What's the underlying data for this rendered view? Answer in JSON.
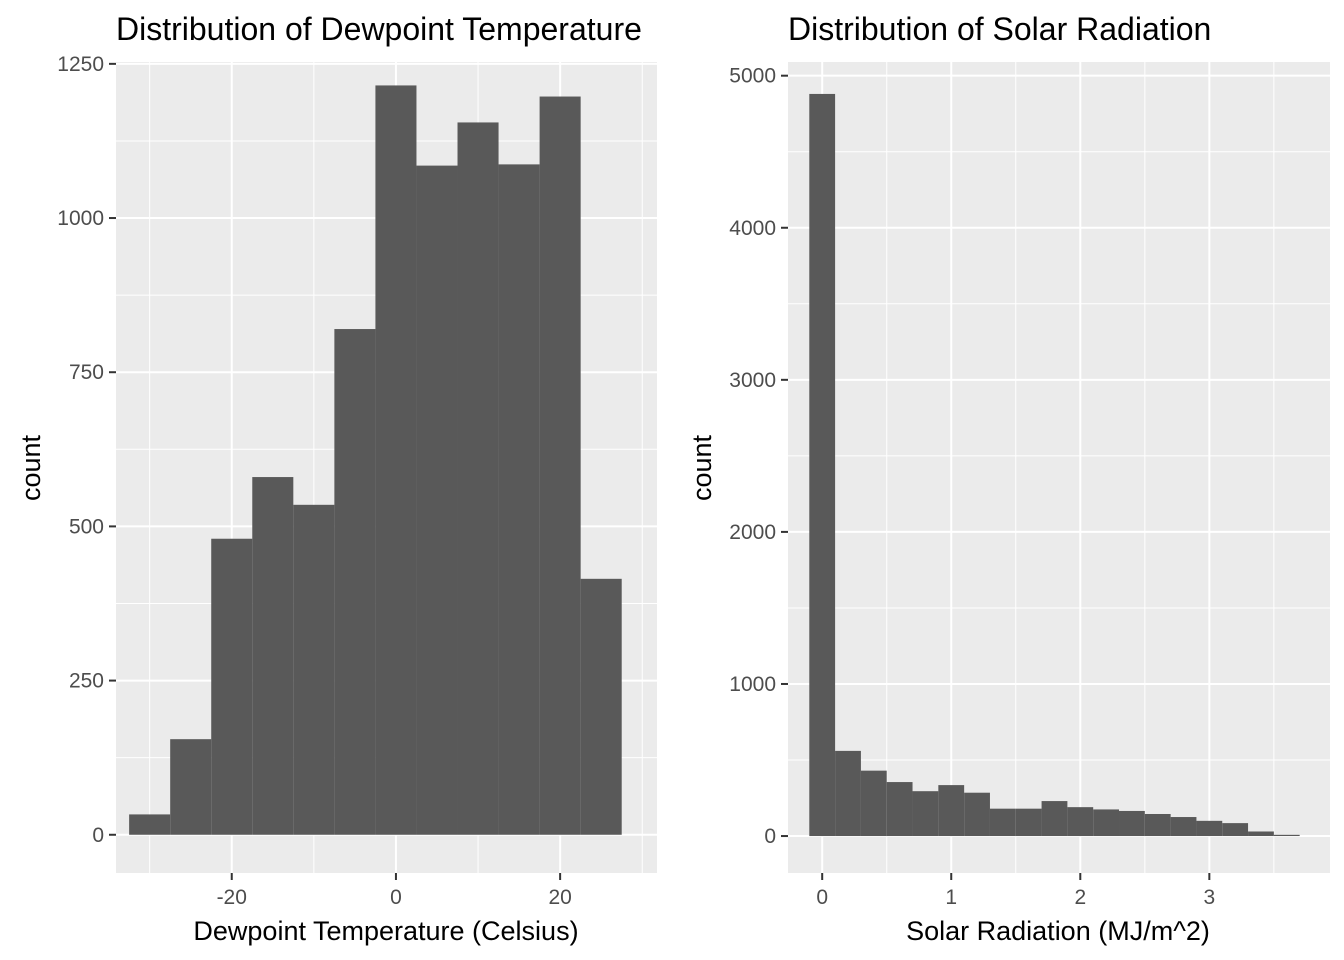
{
  "chart_data": [
    {
      "type": "bar",
      "subtype": "histogram",
      "title": "Distribution of Dewpoint Temperature",
      "xlabel": "Dewpoint Temperature (Celsius)",
      "ylabel": "count",
      "xlim": [
        -34.1,
        31.8
      ],
      "ylim": [
        -62,
        1253
      ],
      "x_ticks": [
        -20,
        0,
        20
      ],
      "x_tick_labels": [
        "-20",
        "0",
        "20"
      ],
      "y_ticks": [
        0,
        250,
        500,
        750,
        1000,
        1250
      ],
      "y_tick_labels": [
        "0",
        "250",
        "500",
        "750",
        "1000",
        "1250"
      ],
      "bin_edges": [
        -32.5,
        -27.5,
        -22.5,
        -17.5,
        -12.5,
        -7.5,
        -2.5,
        2.5,
        7.5,
        12.5,
        17.5,
        22.5,
        27.5
      ],
      "values": [
        33,
        155,
        480,
        580,
        535,
        820,
        1215,
        1085,
        1155,
        1087,
        1197,
        415
      ],
      "bar_color": "#595959",
      "panel_color": "#ebebeb",
      "grid": true
    },
    {
      "type": "bar",
      "subtype": "histogram",
      "title": "Distribution of Solar Radiation",
      "xlabel": "Solar Radiation (MJ/m^2)",
      "ylabel": "count",
      "xlim": [
        -0.265,
        3.935
      ],
      "ylim": [
        -243,
        5090
      ],
      "x_ticks": [
        0,
        1,
        2,
        3
      ],
      "x_tick_labels": [
        "0",
        "1",
        "2",
        "3"
      ],
      "y_ticks": [
        0,
        1000,
        2000,
        3000,
        4000,
        5000
      ],
      "y_tick_labels": [
        "0",
        "1000",
        "2000",
        "3000",
        "4000",
        "5000"
      ],
      "bin_edges": [
        -0.1,
        0.1,
        0.3,
        0.5,
        0.7,
        0.9,
        1.1,
        1.3,
        1.5,
        1.7,
        1.9,
        2.1,
        2.3,
        2.5,
        2.7,
        2.9,
        3.1,
        3.3,
        3.5,
        3.7
      ],
      "values": [
        4880,
        560,
        430,
        355,
        295,
        335,
        285,
        180,
        180,
        230,
        190,
        175,
        165,
        145,
        125,
        100,
        85,
        30,
        8
      ],
      "bar_color": "#595959",
      "panel_color": "#ebebeb",
      "grid": true
    }
  ]
}
